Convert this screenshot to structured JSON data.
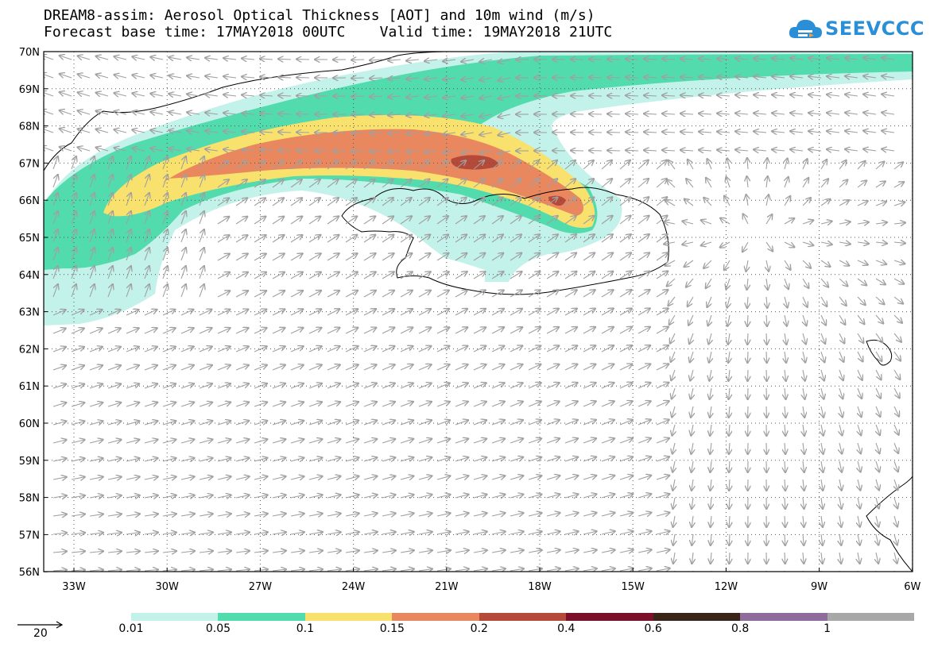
{
  "header": {
    "title_line1": "DREAM8-assim: Aerosol Optical Thickness [AOT] and 10m wind (m/s)",
    "title_line2": "Forecast base time: 17MAY2018 00UTC    Valid time: 19MAY2018 21UTC"
  },
  "logo": {
    "text": "SEEVCCC",
    "color": "#2a8fd6"
  },
  "map": {
    "lat_labels": [
      "70N",
      "69N",
      "68N",
      "67N",
      "66N",
      "65N",
      "64N",
      "63N",
      "62N",
      "61N",
      "60N",
      "59N",
      "58N",
      "57N",
      "56N"
    ],
    "lon_labels": [
      "33W",
      "30W",
      "27W",
      "24W",
      "21W",
      "18W",
      "15W",
      "12W",
      "9W",
      "6W"
    ],
    "coastline_color": "#000000",
    "wind_arrow_color": "#a0a0a0"
  },
  "legend": {
    "labels": [
      "0.01",
      "0.05",
      "0.1",
      "0.15",
      "0.2",
      "0.4",
      "0.6",
      "0.8",
      "1"
    ],
    "colors": [
      "#c2f2ea",
      "#52dbac",
      "#f9e16e",
      "#e9875e",
      "#b5493a",
      "#7c0f2a",
      "#3a2418",
      "#8e6c9c",
      "#a8a8a8"
    ]
  },
  "wind_reference": {
    "label": "20"
  }
}
